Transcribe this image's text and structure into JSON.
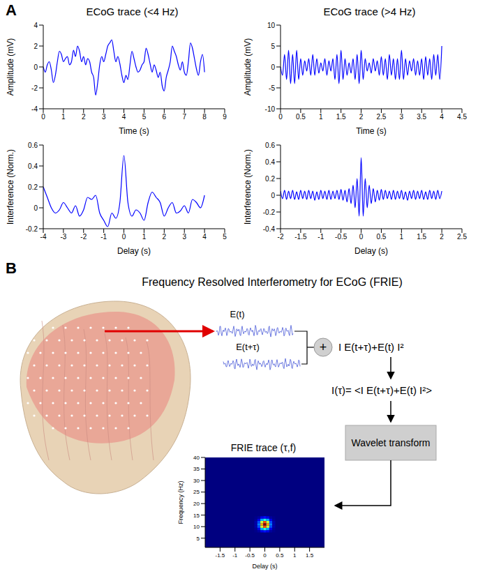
{
  "labels": [
    "A",
    "B"
  ],
  "chart_data": [
    {
      "type": "line",
      "title": "ECoG trace (<4 Hz)",
      "x_label": "Time (s)",
      "y_label": "Amplitude (mV)",
      "color": "#0000ff",
      "xlim": [
        0,
        9
      ],
      "xticks": [
        0,
        1,
        2,
        3,
        4,
        5,
        6,
        7,
        8,
        9
      ],
      "ylim": [
        -4,
        4
      ],
      "yticks": [
        -4,
        -2,
        0,
        2,
        4
      ],
      "x": [
        0,
        0.1,
        0.2,
        0.3,
        0.4,
        0.5,
        0.6,
        0.7,
        0.8,
        0.9,
        1,
        1.1,
        1.2,
        1.3,
        1.4,
        1.5,
        1.6,
        1.7,
        1.8,
        1.9,
        2,
        2.1,
        2.2,
        2.3,
        2.4,
        2.5,
        2.6,
        2.7,
        2.8,
        2.9,
        3,
        3.1,
        3.2,
        3.3,
        3.4,
        3.5,
        3.6,
        3.7,
        3.8,
        3.9,
        4,
        4.1,
        4.2,
        4.3,
        4.4,
        4.5,
        4.6,
        4.7,
        4.8,
        4.9,
        5,
        5.1,
        5.2,
        5.3,
        5.4,
        5.5,
        5.6,
        5.7,
        5.8,
        5.9,
        6,
        6.1,
        6.2,
        6.3,
        6.4,
        6.5,
        6.6,
        6.7,
        6.8,
        6.9,
        7,
        7.1,
        7.2,
        7.3,
        7.4,
        7.5,
        7.6,
        7.7,
        7.8,
        7.9,
        8
      ],
      "values": [
        0,
        -0.5,
        0.2,
        0.5,
        -0.3,
        -1.5,
        -0.8,
        0.5,
        1.5,
        1.2,
        0.5,
        0.8,
        1.0,
        0.2,
        0.5,
        1.6,
        1.0,
        2.0,
        1.5,
        0.5,
        1.0,
        0.2,
        0.8,
        0.5,
        -0.5,
        -1.0,
        -2.7,
        -1.5,
        0.2,
        1.0,
        0.5,
        1.2,
        2.0,
        2.3,
        2.6,
        1.5,
        0.5,
        1.0,
        0.3,
        -0.8,
        -1.5,
        -0.8,
        -1.2,
        0.2,
        1.5,
        0.8,
        0.0,
        -0.5,
        -0.3,
        0.2,
        0.5,
        1.8,
        1.2,
        0.3,
        -0.5,
        0.2,
        -0.3,
        -1.0,
        -0.5,
        -1.8,
        -2.3,
        -1.0,
        -0.3,
        0.5,
        2.0,
        1.5,
        1.0,
        0.2,
        -0.3,
        0.5,
        -0.5,
        -0.8,
        0.5,
        2.3,
        1.8,
        0.8,
        -0.2,
        -0.8,
        0.5,
        1.2,
        -0.5
      ]
    },
    {
      "type": "line",
      "title": "ECoG trace (>4 Hz)",
      "x_label": "Time (s)",
      "y_label": "Amplitude (mV)",
      "color": "#0000ff",
      "xlim": [
        0,
        4.5
      ],
      "xticks": [
        0,
        0.5,
        1,
        1.5,
        2,
        2.5,
        3,
        3.5,
        4,
        4.5
      ],
      "ylim": [
        -10,
        10
      ],
      "yticks": [
        -10,
        -5,
        0,
        5,
        10
      ],
      "x": [
        0,
        0.05,
        0.1,
        0.15,
        0.2,
        0.25,
        0.3,
        0.35,
        0.4,
        0.45,
        0.5,
        0.55,
        0.6,
        0.65,
        0.7,
        0.75,
        0.8,
        0.85,
        0.9,
        0.95,
        1,
        1.05,
        1.1,
        1.15,
        1.2,
        1.25,
        1.3,
        1.35,
        1.4,
        1.45,
        1.5,
        1.55,
        1.6,
        1.65,
        1.7,
        1.75,
        1.8,
        1.85,
        1.9,
        1.95,
        2,
        2.05,
        2.1,
        2.15,
        2.2,
        2.25,
        2.3,
        2.35,
        2.4,
        2.45,
        2.5,
        2.55,
        2.6,
        2.65,
        2.7,
        2.75,
        2.8,
        2.85,
        2.9,
        2.95,
        3,
        3.05,
        3.1,
        3.15,
        3.2,
        3.25,
        3.3,
        3.35,
        3.4,
        3.45,
        3.5,
        3.55,
        3.6,
        3.65,
        3.7,
        3.75,
        3.8,
        3.85,
        3.9,
        3.95,
        4
      ],
      "values": [
        0,
        -2,
        3,
        -3,
        4,
        -4,
        3,
        -4,
        4,
        -3,
        2,
        -2,
        1.5,
        -1,
        2,
        -2,
        3,
        -2,
        2,
        -1.5,
        1,
        -1,
        2,
        -2,
        1.5,
        -1,
        2,
        -3,
        3,
        -4,
        4,
        -3,
        2,
        -2,
        1,
        -1.5,
        2,
        -3,
        3,
        -4,
        4,
        -3,
        2,
        -1,
        1,
        -1.5,
        2,
        -1,
        1.5,
        -2,
        2.5,
        -2,
        2,
        -3,
        3,
        -2,
        2,
        -3,
        2,
        -3,
        4,
        -3,
        2,
        -2,
        1.5,
        -1,
        2,
        -2,
        1.5,
        -2,
        2,
        -3,
        2.5,
        -2,
        2,
        -3,
        3,
        -2,
        3,
        -3,
        5
      ]
    },
    {
      "type": "line",
      "x_label": "Delay (s)",
      "y_label": "Interference (Norm.)",
      "color": "#0000ff",
      "xlim": [
        -4,
        5
      ],
      "xticks": [
        -4,
        -3,
        -2,
        -1,
        0,
        1,
        2,
        3,
        4,
        5
      ],
      "ylim": [
        -0.2,
        0.6
      ],
      "yticks": [
        -0.2,
        0,
        0.2,
        0.4,
        0.6
      ],
      "x": [
        -4,
        -3.8,
        -3.6,
        -3.4,
        -3.2,
        -3,
        -2.8,
        -2.6,
        -2.4,
        -2.2,
        -2,
        -1.8,
        -1.6,
        -1.4,
        -1.2,
        -1,
        -0.8,
        -0.6,
        -0.4,
        -0.2,
        0,
        0.2,
        0.4,
        0.6,
        0.8,
        1,
        1.2,
        1.4,
        1.6,
        1.8,
        2,
        2.2,
        2.4,
        2.6,
        2.8,
        3,
        3.2,
        3.4,
        3.6,
        3.8,
        4
      ],
      "values": [
        0.2,
        0.1,
        0.0,
        -0.05,
        -0.02,
        0.05,
        0.0,
        -0.05,
        0.02,
        -0.08,
        -0.02,
        0.1,
        0.08,
        0.12,
        -0.05,
        -0.12,
        -0.18,
        -0.05,
        -0.1,
        0.05,
        0.5,
        0.05,
        -0.08,
        -0.02,
        -0.05,
        -0.12,
        0.05,
        0.15,
        0.1,
        0.05,
        -0.08,
        0.0,
        0.05,
        -0.05,
        -0.03,
        0.02,
        -0.05,
        0.08,
        0.05,
        0.0,
        0.12
      ]
    },
    {
      "type": "line",
      "x_label": "Delay (s)",
      "y_label": "Interference (Norm.)",
      "color": "#0000ff",
      "xlim": [
        -2,
        2.5
      ],
      "xticks": [
        -2,
        -1.5,
        -1,
        -0.5,
        0,
        0.5,
        1,
        1.5,
        2,
        2.5
      ],
      "ylim": [
        -0.4,
        0.6
      ],
      "yticks": [
        -0.4,
        -0.2,
        0,
        0.2,
        0.4,
        0.6
      ],
      "x": [
        -2,
        -1.95,
        -1.9,
        -1.85,
        -1.8,
        -1.75,
        -1.7,
        -1.65,
        -1.6,
        -1.55,
        -1.5,
        -1.45,
        -1.4,
        -1.35,
        -1.3,
        -1.25,
        -1.2,
        -1.15,
        -1.1,
        -1.05,
        -1,
        -0.95,
        -0.9,
        -0.85,
        -0.8,
        -0.75,
        -0.7,
        -0.65,
        -0.6,
        -0.55,
        -0.5,
        -0.45,
        -0.4,
        -0.35,
        -0.3,
        -0.25,
        -0.2,
        -0.15,
        -0.1,
        -0.05,
        0,
        0.05,
        0.1,
        0.15,
        0.2,
        0.25,
        0.3,
        0.35,
        0.4,
        0.45,
        0.5,
        0.55,
        0.6,
        0.65,
        0.7,
        0.75,
        0.8,
        0.85,
        0.9,
        0.95,
        1,
        1.05,
        1.1,
        1.15,
        1.2,
        1.25,
        1.3,
        1.35,
        1.4,
        1.45,
        1.5,
        1.55,
        1.6,
        1.65,
        1.7,
        1.75,
        1.8,
        1.85,
        1.9,
        1.95,
        2
      ],
      "values": [
        0.05,
        -0.04,
        0.06,
        -0.05,
        0.05,
        -0.04,
        0.06,
        -0.05,
        0.04,
        -0.05,
        0.06,
        -0.04,
        0.05,
        -0.05,
        0.06,
        -0.04,
        0.05,
        -0.06,
        0.04,
        -0.05,
        0.06,
        -0.04,
        0.05,
        -0.05,
        0.06,
        -0.05,
        0.05,
        -0.04,
        0.06,
        -0.05,
        0.07,
        -0.06,
        0.06,
        -0.08,
        0.08,
        -0.1,
        0.12,
        -0.15,
        0.2,
        -0.25,
        0.45,
        -0.25,
        0.2,
        -0.15,
        0.12,
        -0.1,
        0.08,
        -0.08,
        0.06,
        -0.06,
        0.07,
        -0.05,
        0.06,
        -0.04,
        0.05,
        -0.05,
        0.06,
        -0.05,
        0.05,
        -0.04,
        0.06,
        -0.05,
        0.04,
        -0.06,
        0.05,
        -0.04,
        0.06,
        -0.05,
        0.05,
        -0.04,
        0.06,
        -0.05,
        0.04,
        -0.05,
        0.06,
        -0.04,
        0.05,
        -0.05,
        0.06,
        -0.04,
        0.05
      ]
    },
    {
      "type": "heatmap",
      "title": "FRIE trace (τ,f)",
      "x_label": "Delay (s)",
      "y_label": "Frequency (Hz)",
      "xlim": [
        -2,
        2
      ],
      "xticks": [
        -1.5,
        -1,
        -0.5,
        0,
        0.5,
        1,
        1.5
      ],
      "ylim": [
        1,
        40
      ],
      "yticks": [
        5,
        10,
        15,
        20,
        25,
        30,
        35,
        40
      ],
      "zlim": [
        0,
        1
      ],
      "cell_width": 0.1,
      "cell_height": 1,
      "cells": [
        [
          -0.3,
          8,
          0.01
        ],
        [
          -0.2,
          8,
          0.03
        ],
        [
          -0.1,
          8,
          0.1
        ],
        [
          0,
          8,
          0.14
        ],
        [
          0.1,
          8,
          0.1
        ],
        [
          0.2,
          8,
          0.03
        ],
        [
          0.3,
          8,
          0.01
        ],
        [
          -0.3,
          9,
          0.02
        ],
        [
          -0.2,
          9,
          0.1
        ],
        [
          -0.1,
          9,
          0.29
        ],
        [
          0,
          9,
          0.41
        ],
        [
          0.1,
          9,
          0.29
        ],
        [
          0.2,
          9,
          0.1
        ],
        [
          0.3,
          9,
          0.02
        ],
        [
          -0.3,
          10,
          0.04
        ],
        [
          -0.2,
          10,
          0.2
        ],
        [
          -0.1,
          10,
          0.57
        ],
        [
          0,
          10,
          0.8
        ],
        [
          0.1,
          10,
          0.57
        ],
        [
          0.2,
          10,
          0.2
        ],
        [
          0.3,
          10,
          0.04
        ],
        [
          -0.3,
          11,
          0.04
        ],
        [
          -0.2,
          11,
          0.25
        ],
        [
          -0.1,
          11,
          0.71
        ],
        [
          0,
          11,
          1
        ],
        [
          0.1,
          11,
          0.71
        ],
        [
          0.2,
          11,
          0.25
        ],
        [
          0.3,
          11,
          0.04
        ],
        [
          -0.3,
          12,
          0.04
        ],
        [
          -0.2,
          12,
          0.2
        ],
        [
          -0.1,
          12,
          0.57
        ],
        [
          0,
          12,
          0.8
        ],
        [
          0.1,
          12,
          0.57
        ],
        [
          0.2,
          12,
          0.2
        ],
        [
          0.3,
          12,
          0.04
        ],
        [
          -0.3,
          13,
          0.02
        ],
        [
          -0.2,
          13,
          0.1
        ],
        [
          -0.1,
          13,
          0.29
        ],
        [
          0,
          13,
          0.41
        ],
        [
          0.1,
          13,
          0.29
        ],
        [
          0.2,
          13,
          0.1
        ],
        [
          0.3,
          13,
          0.02
        ],
        [
          -0.3,
          14,
          0.01
        ],
        [
          -0.2,
          14,
          0.03
        ],
        [
          -0.1,
          14,
          0.1
        ],
        [
          0,
          14,
          0.14
        ],
        [
          0.1,
          14,
          0.1
        ],
        [
          0.2,
          14,
          0.03
        ],
        [
          0.3,
          14,
          0.01
        ]
      ]
    }
  ],
  "diagram": {
    "title": "Frequency Resolved Interferometry for ECoG (FRIE)",
    "signals": [
      "E(t)",
      "E(t+τ)"
    ],
    "operator": "+",
    "steps": [
      "I E(t+τ)+E(t) I²",
      "I(τ)= <I E(t+τ)+E(t) I²>",
      "Wavelet transform"
    ]
  }
}
